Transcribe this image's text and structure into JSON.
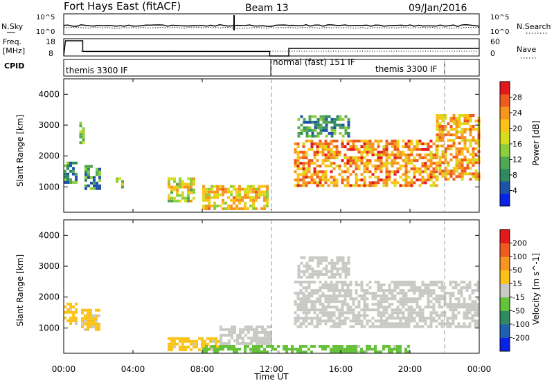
{
  "header": {
    "station": "Fort Hays East (fitACF)",
    "beam": "Beam 13",
    "date": "09/Jan/2016"
  },
  "noise_panel": {
    "left_label": "N.Sky",
    "right_label": "N.Search",
    "left_ticks": [
      "10^5",
      "10^0"
    ],
    "right_ticks": [
      "10^5",
      "10^0"
    ]
  },
  "freq_panel": {
    "left_label_1": "Freq.",
    "left_label_2": "[MHz]",
    "right_label": "Nave",
    "left_ticks": [
      "18",
      "8"
    ],
    "right_ticks": [
      "60",
      "0"
    ]
  },
  "cpid_panel": {
    "label": "CPID",
    "segments": [
      "themis 3300 IF",
      "normal (fast) 151 IF",
      "themis 3300 IF"
    ]
  },
  "x_axis": {
    "label": "Time UT",
    "ticks": [
      "00:00",
      "04:00",
      "08:00",
      "12:00",
      "16:00",
      "20:00",
      "00:00"
    ]
  },
  "power_panel": {
    "ylabel": "Slant Range [km]",
    "yticks": [
      "4000",
      "3000",
      "2000",
      "1000"
    ],
    "colorbar_label": "Power [dB]",
    "colorbar_ticks": [
      "28",
      "24",
      "20",
      "16",
      "12",
      "8",
      "4"
    ],
    "colorbar_colors": [
      "#0a22e6",
      "#1e52a8",
      "#2f8a62",
      "#52a852",
      "#8ccf3c",
      "#d6dd1c",
      "#fbc318",
      "#f7961e",
      "#ef5a1e",
      "#e31a1c"
    ]
  },
  "velocity_panel": {
    "ylabel": "Slant Range [km]",
    "yticks": [
      "4000",
      "3000",
      "2000",
      "1000"
    ],
    "colorbar_label": "Velocity [m s^-1]",
    "colorbar_ticks": [
      "200",
      "100",
      "50",
      "15",
      "-15",
      "-50",
      "-100",
      "-200"
    ],
    "colorbar_colors": [
      "#0a22e6",
      "#1e5fb0",
      "#2f8a62",
      "#66c23a",
      "#c8c8c4",
      "#fbc318",
      "#f7961e",
      "#ef5a1e",
      "#e31a1c"
    ]
  },
  "chart_data": [
    {
      "type": "line",
      "title": "Fort Hays East (fitACF)",
      "series": [
        {
          "name": "N.Sky"
        },
        {
          "name": "N.Search"
        }
      ],
      "x_range_hours": [
        0,
        24
      ],
      "note_values": "noise levels near 10^0 throughout, brief spike near 09:50 UT"
    },
    {
      "type": "line",
      "series": [
        {
          "name": "Freq.",
          "points_hours": [
            [
              0,
              8
            ],
            [
              0.1,
              18
            ],
            [
              1.1,
              18
            ],
            [
              1.1,
              11
            ],
            [
              11.9,
              11
            ],
            [
              11.9,
              8
            ],
            [
              13,
              8
            ],
            [
              13,
              13
            ],
            [
              24,
              13
            ]
          ]
        },
        {
          "name": "Nave"
        }
      ],
      "ylim_freq": [
        8,
        18
      ],
      "ylim_nave": [
        0,
        60
      ]
    },
    {
      "type": "heatmap",
      "ylabel": "Slant Range [km]",
      "xlabel": "Time UT",
      "ylim": [
        180,
        4500
      ],
      "colorbar": "Power [dB]",
      "clim": [
        0,
        32
      ],
      "regions": [
        {
          "t": [
            0.0,
            0.8
          ],
          "r": [
            1100,
            1800
          ],
          "level": 10
        },
        {
          "t": [
            0.9,
            1.2
          ],
          "r": [
            2300,
            3100
          ],
          "level": 14
        },
        {
          "t": [
            1.2,
            2.0
          ],
          "r": [
            900,
            1700
          ],
          "level": 10
        },
        {
          "t": [
            3.0,
            3.4
          ],
          "r": [
            950,
            1300
          ],
          "level": 16
        },
        {
          "t": [
            6.0,
            7.5
          ],
          "r": [
            500,
            1300
          ],
          "level": 18
        },
        {
          "t": [
            8.0,
            11.8
          ],
          "r": [
            250,
            1000
          ],
          "level": 20
        },
        {
          "t": [
            13.3,
            21.5
          ],
          "r": [
            1000,
            2500
          ],
          "level": 24
        },
        {
          "t": [
            13.5,
            16.5
          ],
          "r": [
            2600,
            3300
          ],
          "level": 10
        },
        {
          "t": [
            21.5,
            24.0
          ],
          "r": [
            1200,
            3300
          ],
          "level": 22
        }
      ]
    },
    {
      "type": "heatmap",
      "ylabel": "Slant Range [km]",
      "xlabel": "Time UT",
      "ylim": [
        180,
        4500
      ],
      "colorbar": "Velocity [m s^-1]",
      "clim": [
        -200,
        200
      ],
      "regions": [
        {
          "t": [
            0.0,
            0.8
          ],
          "r": [
            1100,
            1800
          ],
          "velocity": 40
        },
        {
          "t": [
            1.0,
            2.0
          ],
          "r": [
            900,
            1600
          ],
          "velocity": 30
        },
        {
          "t": [
            6.0,
            9.0
          ],
          "r": [
            250,
            700
          ],
          "velocity": 40
        },
        {
          "t": [
            8.0,
            20.0
          ],
          "r": [
            180,
            450
          ],
          "velocity": -40
        },
        {
          "t": [
            9.0,
            12.0
          ],
          "r": [
            450,
            1000
          ],
          "velocity": 0
        },
        {
          "t": [
            13.3,
            24.0
          ],
          "r": [
            1000,
            2500
          ],
          "velocity": 0
        },
        {
          "t": [
            13.5,
            16.5
          ],
          "r": [
            2600,
            3300
          ],
          "velocity": 0
        }
      ]
    }
  ]
}
